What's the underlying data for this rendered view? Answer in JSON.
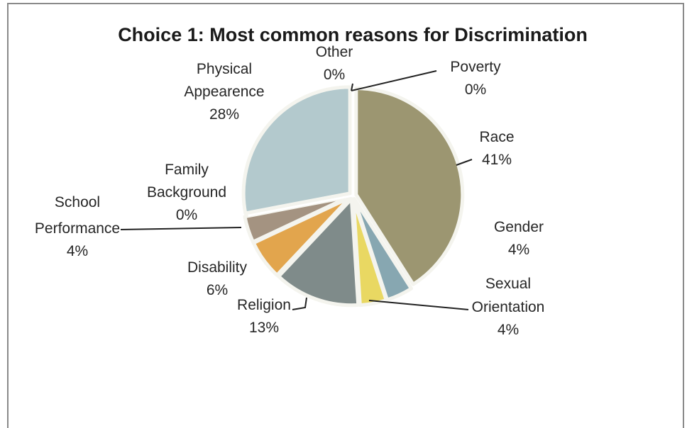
{
  "chart_data": {
    "type": "pie",
    "title": "Choice 1: Most common reasons for Discrimination",
    "slices": [
      {
        "name": "Race",
        "value": 41,
        "label": "41%",
        "color": "#9c9671"
      },
      {
        "name": "Gender",
        "value": 4,
        "label": "4%",
        "color": "#87a7b1"
      },
      {
        "name": "Sexual Orientation",
        "value": 4,
        "label": "4%",
        "color": "#e9d862"
      },
      {
        "name": "Religion",
        "value": 13,
        "label": "13%",
        "color": "#7f8b8a"
      },
      {
        "name": "Disability",
        "value": 6,
        "label": "6%",
        "color": "#e2a54d"
      },
      {
        "name": "School Performance",
        "value": 4,
        "label": "4%",
        "color": "#a49381"
      },
      {
        "name": "Family Background",
        "value": 0,
        "label": "0%",
        "color": "#cfb39d"
      },
      {
        "name": "Physical Appearence",
        "value": 28,
        "label": "28%",
        "color": "#b3c9cd"
      },
      {
        "name": "Other",
        "value": 0,
        "label": "0%",
        "color": "#dde3dc"
      },
      {
        "name": "Poverty",
        "value": 0,
        "label": "0%",
        "color": "#e3e1cc"
      }
    ]
  },
  "labels": {
    "poverty": [
      "Poverty",
      "0%"
    ],
    "race": [
      "Race",
      "41%"
    ],
    "gender": [
      "Gender",
      "4%"
    ],
    "sexual": [
      "Sexual",
      "Orientation",
      "4%"
    ],
    "religion": [
      "Religion",
      "13%"
    ],
    "disability": [
      "Disability",
      "6%"
    ],
    "school": [
      "School",
      "Performance",
      "4%"
    ],
    "family": [
      "Family",
      "Background",
      "0%"
    ],
    "physical": [
      "Physical",
      "Appearence",
      "28%"
    ],
    "other": [
      "Other",
      "0%"
    ]
  }
}
